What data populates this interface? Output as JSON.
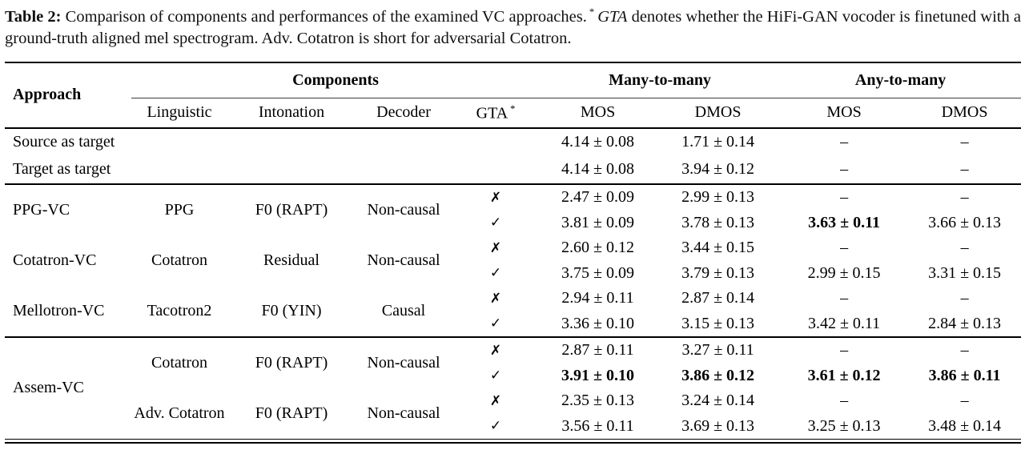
{
  "caption": {
    "label": "Table 2",
    "colon": ": ",
    "body_1": "Comparison of components and performances of the examined VC approaches.",
    "footnote_mark": "*",
    "footnote_term": "GTA",
    "body_2": " denotes whether the HiFi-GAN vocoder is finetuned with a ground-truth aligned mel spectrogram. Adv. Cotatron is short for adversarial Cotatron."
  },
  "table": {
    "header": {
      "approach": "Approach",
      "components": "Components",
      "many_to_many": "Many-to-many",
      "any_to_many": "Any-to-many",
      "linguistic": "Linguistic",
      "intonation": "Intonation",
      "decoder": "Decoder",
      "gta": "GTA",
      "gta_footnote_mark": "*",
      "mos_many": "MOS",
      "dmos_many": "DMOS",
      "mos_any": "MOS",
      "dmos_any": "DMOS"
    },
    "baselines": [
      {
        "approach": "Source as target",
        "mos_many": "4.14 ± 0.08",
        "dmos_many": "1.71 ± 0.14",
        "mos_any": "–",
        "dmos_any": "–"
      },
      {
        "approach": "Target as target",
        "mos_many": "4.14 ± 0.08",
        "dmos_many": "3.94 ± 0.12",
        "mos_any": "–",
        "dmos_any": "–"
      }
    ],
    "systems": [
      {
        "approach": "PPG-VC",
        "linguistic": "PPG",
        "intonation": "F0 (RAPT)",
        "decoder": "Non-causal",
        "rows": [
          {
            "gta": "✗",
            "mos_many": "2.47 ± 0.09",
            "dmos_many": "2.99 ± 0.13",
            "mos_any": "–",
            "dmos_any": "–"
          },
          {
            "gta": "✓",
            "mos_many": "3.81 ± 0.09",
            "dmos_many": "3.78 ± 0.13",
            "mos_any": "3.63 ± 0.11",
            "dmos_any": "3.66 ± 0.13"
          }
        ]
      },
      {
        "approach": "Cotatron-VC",
        "linguistic": "Cotatron",
        "intonation": "Residual",
        "decoder": "Non-causal",
        "rows": [
          {
            "gta": "✗",
            "mos_many": "2.60 ± 0.12",
            "dmos_many": "3.44 ± 0.15",
            "mos_any": "–",
            "dmos_any": "–"
          },
          {
            "gta": "✓",
            "mos_many": "3.75 ± 0.09",
            "dmos_many": "3.79 ± 0.13",
            "mos_any": "2.99 ± 0.15",
            "dmos_any": "3.31 ± 0.15"
          }
        ]
      },
      {
        "approach": "Mellotron-VC",
        "linguistic": "Tacotron2",
        "intonation": "F0 (YIN)",
        "decoder": "Causal",
        "rows": [
          {
            "gta": "✗",
            "mos_many": "2.94 ± 0.11",
            "dmos_many": "2.87 ± 0.14",
            "mos_any": "–",
            "dmos_any": "–"
          },
          {
            "gta": "✓",
            "mos_many": "3.36 ± 0.10",
            "dmos_many": "3.15 ± 0.13",
            "mos_any": "3.42 ± 0.11",
            "dmos_any": "2.84 ± 0.13"
          }
        ]
      }
    ],
    "assem": {
      "approach": "Assem-VC",
      "variants": [
        {
          "linguistic": "Cotatron",
          "intonation": "F0 (RAPT)",
          "decoder": "Non-causal",
          "rows": [
            {
              "gta": "✗",
              "mos_many": "2.87 ± 0.11",
              "dmos_many": "3.27 ± 0.11",
              "mos_any": "–",
              "dmos_any": "–"
            },
            {
              "gta": "✓",
              "mos_many": "3.91 ± 0.10",
              "dmos_many": "3.86 ± 0.12",
              "mos_any": "3.61 ± 0.12",
              "dmos_any": "3.86 ± 0.11"
            }
          ]
        },
        {
          "linguistic": "Adv. Cotatron",
          "intonation": "F0 (RAPT)",
          "decoder": "Non-causal",
          "rows": [
            {
              "gta": "✗",
              "mos_many": "2.35 ± 0.13",
              "dmos_many": "3.24 ± 0.14",
              "mos_any": "–",
              "dmos_any": "–"
            },
            {
              "gta": "✓",
              "mos_many": "3.56 ± 0.11",
              "dmos_many": "3.69 ± 0.13",
              "mos_any": "3.25 ± 0.13",
              "dmos_any": "3.48 ± 0.14"
            }
          ]
        }
      ]
    }
  }
}
